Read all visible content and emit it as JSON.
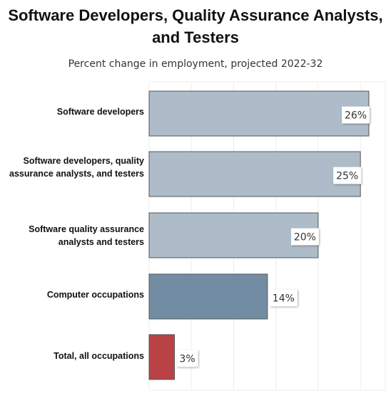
{
  "title": "Software Developers, Quality Assurance Analysts, and Testers",
  "subtitle": "Percent change in employment, projected 2022-32",
  "chart_data": {
    "type": "bar",
    "orientation": "horizontal",
    "title": "Software Developers, Quality Assurance Analysts, and Testers",
    "subtitle": "Percent change in employment, projected 2022-32",
    "categories": [
      "Software developers",
      "Software developers, quality assurance analysts, and testers",
      "Software quality assurance analysts and testers",
      "Computer occupations",
      "Total, all occupations"
    ],
    "values": [
      26,
      25,
      20,
      14,
      3
    ],
    "value_labels": [
      "26%",
      "25%",
      "20%",
      "14%",
      "3%"
    ],
    "colors": [
      "#adbcc8",
      "#adbcc8",
      "#adbcc8",
      "#728da3",
      "#b84245"
    ],
    "xlim": [
      0,
      27
    ],
    "grid": true
  }
}
